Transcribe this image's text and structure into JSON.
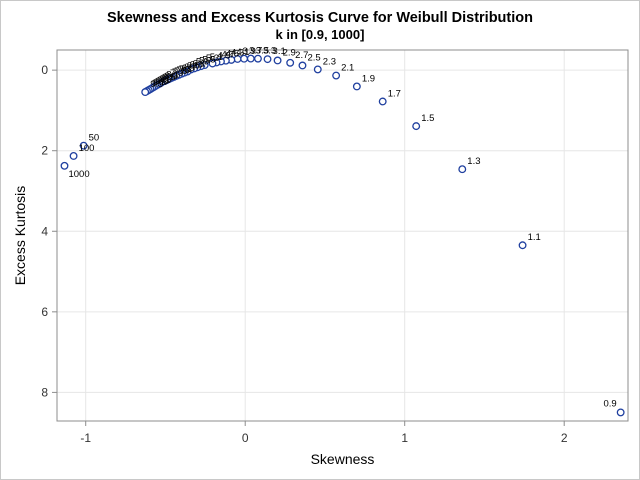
{
  "chart_data": {
    "type": "scatter",
    "title": "Skewness and Excess Kurtosis Curve for Weibull Distribution",
    "subtitle": "k in [0.9, 1000]",
    "xlabel": "Skewness",
    "ylabel": "Excess Kurtosis",
    "xlim": [
      -1.18,
      2.4
    ],
    "ylim": [
      -0.5,
      8.71
    ],
    "y_reversed": true,
    "grid": true,
    "xticks": [
      -1,
      0,
      1,
      2
    ],
    "yticks": [
      0,
      2,
      4,
      6,
      8
    ],
    "marker_color": "#1f3f9f",
    "points": [
      {
        "label": "0.9",
        "x": 2.354,
        "y": 8.497
      },
      {
        "label": "1.1",
        "x": 1.739,
        "y": 4.347
      },
      {
        "label": "1.3",
        "x": 1.361,
        "y": 2.459
      },
      {
        "label": "1.5",
        "x": 1.072,
        "y": 1.39
      },
      {
        "label": "1.7",
        "x": 0.862,
        "y": 0.778
      },
      {
        "label": "1.9",
        "x": 0.7,
        "y": 0.405
      },
      {
        "label": "2.1",
        "x": 0.57,
        "y": 0.134
      },
      {
        "label": "2.3",
        "x": 0.455,
        "y": -0.018
      },
      {
        "label": "2.5",
        "x": 0.359,
        "y": -0.116
      },
      {
        "label": "2.7",
        "x": 0.282,
        "y": -0.183
      },
      {
        "label": "2.9",
        "x": 0.203,
        "y": -0.24
      },
      {
        "label": "3.1",
        "x": 0.14,
        "y": -0.273
      },
      {
        "label": "3.3",
        "x": 0.08,
        "y": -0.285
      },
      {
        "label": "3.5",
        "x": 0.035,
        "y": -0.287
      },
      {
        "label": "3.7",
        "x": -0.007,
        "y": -0.284
      },
      {
        "label": "3.9",
        "x": -0.048,
        "y": -0.277
      },
      {
        "label": "4.1",
        "x": -0.087,
        "y": -0.254
      },
      {
        "label": "4.3",
        "x": -0.121,
        "y": -0.235
      },
      {
        "label": "4.5",
        "x": -0.152,
        "y": -0.216
      },
      {
        "label": "4.7",
        "x": -0.18,
        "y": -0.191
      },
      {
        "label": "4.9",
        "x": -0.205,
        "y": -0.165
      },
      {
        "label": "5.1",
        "x": -0.254,
        "y": -0.125
      },
      {
        "label": "5.3",
        "x": -0.278,
        "y": -0.097
      },
      {
        "label": "5.5",
        "x": -0.3,
        "y": -0.069
      },
      {
        "label": "5.7",
        "x": -0.32,
        "y": -0.042
      },
      {
        "label": "5.9",
        "x": -0.341,
        "y": -0.015
      },
      {
        "label": "6.1",
        "x": -0.362,
        "y": 0.036
      },
      {
        "label": "6.3",
        "x": -0.38,
        "y": 0.062
      },
      {
        "label": "6.5",
        "x": -0.398,
        "y": 0.088
      },
      {
        "label": "6.7",
        "x": -0.415,
        "y": 0.115
      },
      {
        "label": "6.9",
        "x": -0.431,
        "y": 0.141
      },
      {
        "label": "7.1",
        "x": -0.447,
        "y": 0.168
      },
      {
        "label": "7.3",
        "x": -0.462,
        "y": 0.194
      },
      {
        "label": "7.5",
        "x": -0.476,
        "y": 0.22
      },
      {
        "label": "7.7",
        "x": -0.49,
        "y": 0.245
      },
      {
        "label": "7.9",
        "x": -0.503,
        "y": 0.27
      },
      {
        "label": "8.1",
        "x": -0.526,
        "y": 0.313
      },
      {
        "label": "8.3",
        "x": -0.538,
        "y": 0.339
      },
      {
        "label": "8.5",
        "x": -0.55,
        "y": 0.365
      },
      {
        "label": "8.7",
        "x": -0.561,
        "y": 0.391
      },
      {
        "label": "8.9",
        "x": -0.572,
        "y": 0.417
      },
      {
        "label": "9.1",
        "x": -0.583,
        "y": 0.443
      },
      {
        "label": "9.3",
        "x": -0.594,
        "y": 0.469
      },
      {
        "label": "9.5",
        "x": -0.605,
        "y": 0.495
      },
      {
        "label": "9.7",
        "x": -0.616,
        "y": 0.52
      },
      {
        "label": "9.9",
        "x": -0.627,
        "y": 0.545
      },
      {
        "label": "50",
        "x": -1.013,
        "y": 1.875
      },
      {
        "label": "100",
        "x": -1.076,
        "y": 2.13
      },
      {
        "label": "1000",
        "x": -1.133,
        "y": 2.375
      }
    ]
  }
}
